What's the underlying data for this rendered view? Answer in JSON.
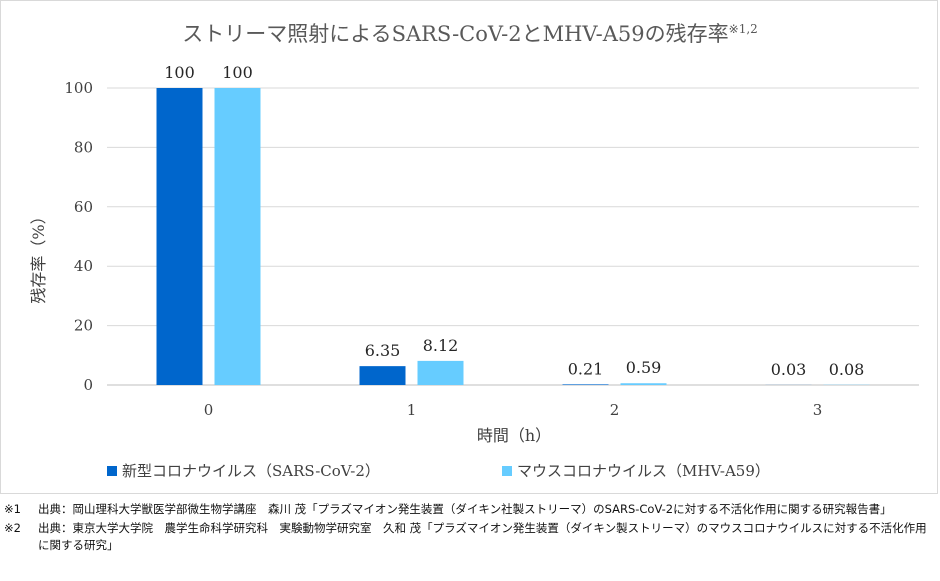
{
  "chart_data": {
    "type": "bar",
    "title": "ストリーマ照射によるSARS-CoV-2とMHV-A59の残存率",
    "title_superscript": "※1,2",
    "xlabel": "時間（h）",
    "ylabel": "残存率（%）",
    "ylim": [
      0,
      100
    ],
    "yticks": [
      "0",
      "20",
      "40",
      "60",
      "80",
      "100"
    ],
    "categories": [
      "0",
      "1",
      "2",
      "3"
    ],
    "series": [
      {
        "name": "新型コロナウイルス（SARS-CoV-2）",
        "color": "#0066cc",
        "values": [
          100,
          6.35,
          0.21,
          0.03
        ],
        "labels": [
          "100",
          "6.35",
          "0.21",
          "0.03"
        ]
      },
      {
        "name": "マウスコロナウイルス（MHV-A59）",
        "color": "#66ccff",
        "values": [
          100,
          8.12,
          0.59,
          0.08
        ],
        "labels": [
          "100",
          "8.12",
          "0.59",
          "0.08"
        ]
      }
    ],
    "legend_position": "bottom",
    "grid": true
  },
  "notes": [
    {
      "mark": "※1",
      "text": "出典：岡山理科大学獣医学部微生物学講座　森川 茂「プラズマイオン発生装置（ダイキン社製ストリーマ）のSARS-CoV-2に対する不活化作用に関する研究報告書」"
    },
    {
      "mark": "※2",
      "text": "出典：東京大学大学院　農学生命科学研究科　実験動物学研究室　久和 茂「プラズマイオン発生装置（ダイキン製ストリーマ）のマウスコロナウイルスに対する不活化作用に関する研究」"
    }
  ]
}
